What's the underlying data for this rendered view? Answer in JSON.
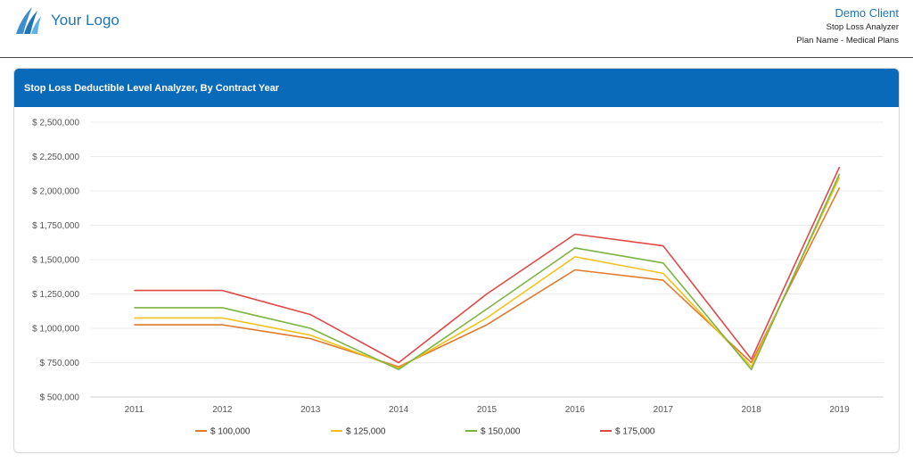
{
  "header": {
    "logo_text": "Your Logo",
    "client_name": "Demo Client",
    "subtitle": "Stop Loss Analyzer",
    "plan_line": "Plan Name - Medical Plans"
  },
  "card": {
    "title": "Stop Loss Deductible Level Analyzer, By Contract Year"
  },
  "chart_data": {
    "type": "line",
    "x": [
      "2011",
      "2012",
      "2013",
      "2014",
      "2015",
      "2016",
      "2017",
      "2018",
      "2019"
    ],
    "ylim": [
      500000,
      2500000
    ],
    "yticks": [
      500000,
      750000,
      1000000,
      1250000,
      1500000,
      1750000,
      2000000,
      2250000,
      2500000
    ],
    "ytick_labels": [
      "$ 500,000",
      "$ 750,000",
      "$ 1,000,000",
      "$ 1,250,000",
      "$ 1,500,000",
      "$ 1,750,000",
      "$ 2,000,000",
      "$ 2,250,000",
      "$ 2,500,000"
    ],
    "grid": true,
    "legend": "bottom",
    "series": [
      {
        "name": "$ 100,000",
        "color": "#e07b2e",
        "values": [
          1025000,
          1025000,
          925000,
          720000,
          1025000,
          1425000,
          1350000,
          750000,
          2025000
        ]
      },
      {
        "name": "$ 125,000",
        "color": "#f2c21b",
        "values": [
          1075000,
          1075000,
          950000,
          710000,
          1075000,
          1520000,
          1400000,
          720000,
          2100000
        ]
      },
      {
        "name": "$ 150,000",
        "color": "#7cb342",
        "values": [
          1150000,
          1150000,
          1000000,
          700000,
          1140000,
          1585000,
          1475000,
          700000,
          2125000
        ]
      },
      {
        "name": "$ 175,000",
        "color": "#e04848",
        "values": [
          1275000,
          1275000,
          1100000,
          750000,
          1250000,
          1685000,
          1600000,
          775000,
          2175000
        ]
      }
    ]
  }
}
